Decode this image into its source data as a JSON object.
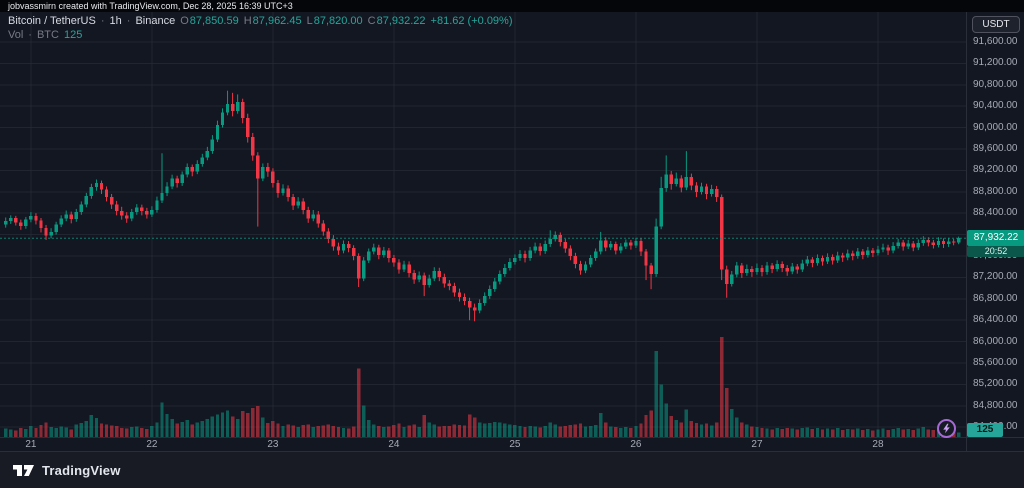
{
  "attribution": "jobvassmirn created with TradingView.com, Dec 28, 2025 16:39 UTC+3",
  "legend": {
    "symbol": "Bitcoin / TetherUS",
    "separator": "·",
    "interval": "1h",
    "exchange": "Binance",
    "ohlc": {
      "o_label": "O",
      "o": "87,850.59",
      "h_label": "H",
      "h": "87,962.45",
      "l_label": "L",
      "l": "87,820.00",
      "c_label": "C",
      "c": "87,932.22",
      "change": "+81.62 (+0.09%)"
    },
    "volume": {
      "label": "Vol",
      "unit": "BTC",
      "value": "125"
    }
  },
  "currency_button": {
    "label": "USDT"
  },
  "price_axis_ui": {
    "current_price": "87,932.22",
    "countdown": "20:52",
    "volume": "125"
  },
  "footer": {
    "brand": "TradingView"
  },
  "colors": {
    "up": "#089981",
    "down": "#f23645",
    "vol_up": "rgba(8,153,129,0.55)",
    "vol_down": "rgba(242,54,69,0.55)",
    "grid": "rgba(42,46,57,0.6)",
    "accent": "#26a69a",
    "badge_price_bg": "#089981",
    "badge_countdown_bg": "#0b574c",
    "badge_volume_bg": "#26a69a"
  },
  "chart_data": {
    "type": "candlestick+volume",
    "symbol": "Bitcoin / TetherUS",
    "interval": "1h",
    "exchange": "Binance",
    "last_price": 87932.22,
    "price_axis": {
      "top_value": 91600,
      "step": 400,
      "tick_labels": [
        "91,600.00",
        "91,200.00",
        "90,800.00",
        "90,400.00",
        "90,000.00",
        "89,600.00",
        "89,200.00",
        "88,800.00",
        "88,400.00",
        "88,000.00",
        "87,600.00",
        "87,200.00",
        "86,800.00",
        "86,400.00",
        "86,000.00",
        "85,600.00",
        "85,200.00",
        "84,800.00",
        "84,400.00"
      ]
    },
    "x_ticks": {
      "indices": [
        5,
        29,
        53,
        77,
        101,
        125,
        149,
        173
      ],
      "labels": [
        "21",
        "22",
        "23",
        "24",
        "25",
        "26",
        "27",
        "28"
      ]
    },
    "candles": [
      [
        88190,
        88320,
        88130,
        88250,
        240
      ],
      [
        88250,
        88360,
        88200,
        88310,
        210
      ],
      [
        88310,
        88350,
        88170,
        88230,
        180
      ],
      [
        88230,
        88280,
        88090,
        88160,
        260
      ],
      [
        88160,
        88330,
        88110,
        88280,
        230
      ],
      [
        88280,
        88420,
        88230,
        88350,
        310
      ],
      [
        88350,
        88400,
        88190,
        88260,
        250
      ],
      [
        88260,
        88310,
        88040,
        88120,
        340
      ],
      [
        88120,
        88180,
        87900,
        87980,
        420
      ],
      [
        87980,
        88120,
        87930,
        88050,
        280
      ],
      [
        88050,
        88240,
        88000,
        88190,
        260
      ],
      [
        88190,
        88360,
        88140,
        88300,
        300
      ],
      [
        88300,
        88450,
        88250,
        88380,
        270
      ],
      [
        88380,
        88430,
        88210,
        88290,
        220
      ],
      [
        88290,
        88480,
        88240,
        88420,
        350
      ],
      [
        88420,
        88620,
        88370,
        88560,
        400
      ],
      [
        88560,
        88780,
        88510,
        88720,
        450
      ],
      [
        88720,
        88950,
        88670,
        88890,
        620
      ],
      [
        88890,
        89030,
        88820,
        88960,
        540
      ],
      [
        88960,
        89010,
        88760,
        88840,
        380
      ],
      [
        88840,
        88900,
        88620,
        88700,
        360
      ],
      [
        88700,
        88760,
        88480,
        88560,
        330
      ],
      [
        88560,
        88630,
        88360,
        88440,
        310
      ],
      [
        88440,
        88520,
        88280,
        88360,
        260
      ],
      [
        88360,
        88420,
        88220,
        88300,
        240
      ],
      [
        88300,
        88480,
        88250,
        88420,
        280
      ],
      [
        88420,
        88570,
        88370,
        88510,
        300
      ],
      [
        88510,
        88560,
        88360,
        88440,
        250
      ],
      [
        88440,
        88500,
        88300,
        88380,
        230
      ],
      [
        88380,
        88530,
        88330,
        88460,
        320
      ],
      [
        88460,
        88710,
        88410,
        88640,
        420
      ],
      [
        88640,
        89520,
        88590,
        88780,
        980
      ],
      [
        88780,
        88980,
        88720,
        88900,
        650
      ],
      [
        88900,
        89120,
        88850,
        89050,
        520
      ],
      [
        89050,
        89100,
        88880,
        88960,
        380
      ],
      [
        88960,
        89180,
        88910,
        89120,
        430
      ],
      [
        89120,
        89330,
        89070,
        89260,
        480
      ],
      [
        89260,
        89310,
        89090,
        89180,
        350
      ],
      [
        89180,
        89390,
        89130,
        89320,
        420
      ],
      [
        89320,
        89510,
        89270,
        89440,
        460
      ],
      [
        89440,
        89640,
        89390,
        89560,
        510
      ],
      [
        89560,
        89860,
        89510,
        89780,
        580
      ],
      [
        89780,
        90130,
        89730,
        90050,
        640
      ],
      [
        90050,
        90360,
        90000,
        90280,
        700
      ],
      [
        90280,
        90690,
        90230,
        90440,
        760
      ],
      [
        90440,
        90650,
        90210,
        90310,
        580
      ],
      [
        90310,
        90620,
        90260,
        90480,
        520
      ],
      [
        90480,
        90540,
        90080,
        90180,
        740
      ],
      [
        90180,
        90260,
        89720,
        89820,
        690
      ],
      [
        89820,
        89900,
        89380,
        89480,
        820
      ],
      [
        89480,
        89540,
        88150,
        89050,
        880
      ],
      [
        89050,
        89330,
        89000,
        89260,
        560
      ],
      [
        89260,
        89340,
        89080,
        89180,
        400
      ],
      [
        89180,
        89240,
        88880,
        88960,
        450
      ],
      [
        88960,
        89020,
        88690,
        88780,
        380
      ],
      [
        88780,
        88940,
        88730,
        88860,
        320
      ],
      [
        88860,
        88920,
        88620,
        88700,
        350
      ],
      [
        88700,
        88760,
        88460,
        88540,
        330
      ],
      [
        88540,
        88700,
        88490,
        88620,
        290
      ],
      [
        88620,
        88680,
        88380,
        88460,
        340
      ],
      [
        88460,
        88520,
        88220,
        88300,
        360
      ],
      [
        88300,
        88460,
        88250,
        88380,
        280
      ],
      [
        88380,
        88440,
        88130,
        88210,
        310
      ],
      [
        88210,
        88270,
        87980,
        88060,
        330
      ],
      [
        88060,
        88120,
        87840,
        87920,
        350
      ],
      [
        87920,
        87990,
        87700,
        87780,
        320
      ],
      [
        87780,
        87850,
        87620,
        87700,
        280
      ],
      [
        87700,
        87890,
        87650,
        87820,
        260
      ],
      [
        87820,
        87880,
        87670,
        87750,
        240
      ],
      [
        87750,
        87800,
        87520,
        87600,
        300
      ],
      [
        87600,
        87650,
        87020,
        87180,
        1950
      ],
      [
        87180,
        87580,
        87130,
        87520,
        900
      ],
      [
        87520,
        87740,
        87470,
        87680,
        480
      ],
      [
        87680,
        87830,
        87630,
        87760,
        360
      ],
      [
        87760,
        87810,
        87540,
        87620,
        320
      ],
      [
        87620,
        87770,
        87570,
        87700,
        280
      ],
      [
        87700,
        87750,
        87480,
        87560,
        300
      ],
      [
        87560,
        87620,
        87400,
        87480,
        340
      ],
      [
        87480,
        87540,
        87270,
        87350,
        380
      ],
      [
        87350,
        87510,
        87300,
        87440,
        290
      ],
      [
        87440,
        87500,
        87200,
        87280,
        330
      ],
      [
        87280,
        87340,
        87080,
        87160,
        360
      ],
      [
        87160,
        87310,
        87110,
        87240,
        280
      ],
      [
        87240,
        87290,
        86850,
        87060,
        620
      ],
      [
        87060,
        87250,
        87010,
        87180,
        420
      ],
      [
        87180,
        87390,
        87130,
        87320,
        350
      ],
      [
        87320,
        87380,
        87130,
        87210,
        300
      ],
      [
        87210,
        87270,
        87010,
        87090,
        320
      ],
      [
        87090,
        87150,
        86960,
        87040,
        310
      ],
      [
        87040,
        87100,
        86840,
        86920,
        360
      ],
      [
        86920,
        86990,
        86750,
        86830,
        340
      ],
      [
        86830,
        86900,
        86680,
        86760,
        330
      ],
      [
        86760,
        86820,
        86400,
        86640,
        640
      ],
      [
        86640,
        86710,
        86380,
        86580,
        560
      ],
      [
        86580,
        86790,
        86530,
        86720,
        420
      ],
      [
        86720,
        86920,
        86670,
        86850,
        380
      ],
      [
        86850,
        87050,
        86800,
        86980,
        400
      ],
      [
        86980,
        87190,
        86930,
        87120,
        430
      ],
      [
        87120,
        87330,
        87070,
        87260,
        410
      ],
      [
        87260,
        87450,
        87210,
        87380,
        380
      ],
      [
        87380,
        87560,
        87330,
        87490,
        360
      ],
      [
        87490,
        87630,
        87440,
        87560,
        340
      ],
      [
        87560,
        87710,
        87510,
        87640,
        310
      ],
      [
        87640,
        87700,
        87480,
        87560,
        280
      ],
      [
        87560,
        87770,
        87510,
        87700,
        320
      ],
      [
        87700,
        87850,
        87650,
        87780,
        300
      ],
      [
        87780,
        87840,
        87610,
        87690,
        270
      ],
      [
        87690,
        87890,
        87640,
        87820,
        310
      ],
      [
        87820,
        88080,
        87770,
        87920,
        420
      ],
      [
        87920,
        88060,
        87870,
        87990,
        350
      ],
      [
        87990,
        88040,
        87780,
        87860,
        300
      ],
      [
        87860,
        87920,
        87660,
        87740,
        320
      ],
      [
        87740,
        87800,
        87520,
        87600,
        340
      ],
      [
        87600,
        87660,
        87370,
        87450,
        360
      ],
      [
        87450,
        87510,
        87250,
        87330,
        380
      ],
      [
        87330,
        87500,
        87280,
        87440,
        300
      ],
      [
        87440,
        87620,
        87390,
        87560,
        320
      ],
      [
        87560,
        87740,
        87510,
        87680,
        340
      ],
      [
        87680,
        88050,
        87630,
        87890,
        680
      ],
      [
        87890,
        87950,
        87690,
        87760,
        420
      ],
      [
        87760,
        87880,
        87710,
        87820,
        300
      ],
      [
        87820,
        87870,
        87630,
        87700,
        280
      ],
      [
        87700,
        87840,
        87650,
        87780,
        260
      ],
      [
        87780,
        87910,
        87730,
        87850,
        290
      ],
      [
        87850,
        87900,
        87720,
        87800,
        250
      ],
      [
        87800,
        87940,
        87750,
        87880,
        310
      ],
      [
        87880,
        87930,
        87600,
        87680,
        380
      ],
      [
        87680,
        87730,
        87150,
        87420,
        620
      ],
      [
        87420,
        87470,
        86980,
        87260,
        750
      ],
      [
        87260,
        88300,
        87210,
        88150,
        2450
      ],
      [
        88150,
        89080,
        88100,
        88870,
        1500
      ],
      [
        88870,
        89480,
        88800,
        89120,
        950
      ],
      [
        89120,
        89190,
        88840,
        88950,
        600
      ],
      [
        88950,
        89160,
        88900,
        89050,
        480
      ],
      [
        89050,
        89110,
        88790,
        88880,
        420
      ],
      [
        88880,
        89560,
        88830,
        89080,
        780
      ],
      [
        89080,
        89140,
        88830,
        88920,
        450
      ],
      [
        88920,
        88980,
        88700,
        88800,
        400
      ],
      [
        88800,
        88970,
        88750,
        88900,
        350
      ],
      [
        88900,
        88950,
        88660,
        88760,
        380
      ],
      [
        88760,
        88930,
        88710,
        88850,
        330
      ],
      [
        88850,
        88910,
        88610,
        88700,
        420
      ],
      [
        88700,
        88750,
        87150,
        87350,
        2850
      ],
      [
        87350,
        87420,
        86820,
        87080,
        1400
      ],
      [
        87080,
        87320,
        87030,
        87250,
        800
      ],
      [
        87250,
        87490,
        87200,
        87420,
        550
      ],
      [
        87420,
        87470,
        87190,
        87280,
        420
      ],
      [
        87280,
        87440,
        87230,
        87360,
        350
      ],
      [
        87360,
        87410,
        87210,
        87300,
        300
      ],
      [
        87300,
        87460,
        87250,
        87380,
        280
      ],
      [
        87380,
        87430,
        87220,
        87300,
        260
      ],
      [
        87300,
        87490,
        87250,
        87420,
        240
      ],
      [
        87420,
        87470,
        87280,
        87360,
        220
      ],
      [
        87360,
        87520,
        87310,
        87450,
        250
      ],
      [
        87450,
        87500,
        87300,
        87380,
        230
      ],
      [
        87380,
        87430,
        87230,
        87310,
        260
      ],
      [
        87310,
        87470,
        87260,
        87400,
        240
      ],
      [
        87400,
        87450,
        87270,
        87350,
        210
      ],
      [
        87350,
        87530,
        87300,
        87460,
        250
      ],
      [
        87460,
        87600,
        87410,
        87530,
        270
      ],
      [
        87530,
        87580,
        87390,
        87470,
        230
      ],
      [
        87470,
        87630,
        87420,
        87560,
        260
      ],
      [
        87560,
        87610,
        87420,
        87500,
        220
      ],
      [
        87500,
        87650,
        87450,
        87580,
        240
      ],
      [
        87580,
        87630,
        87440,
        87520,
        210
      ],
      [
        87520,
        87680,
        87470,
        87610,
        250
      ],
      [
        87610,
        87660,
        87490,
        87570,
        200
      ],
      [
        87570,
        87720,
        87520,
        87650,
        230
      ],
      [
        87650,
        87700,
        87520,
        87600,
        210
      ],
      [
        87600,
        87750,
        87550,
        87680,
        240
      ],
      [
        87680,
        87730,
        87540,
        87620,
        200
      ],
      [
        87620,
        87770,
        87570,
        87700,
        230
      ],
      [
        87700,
        87750,
        87580,
        87660,
        190
      ],
      [
        87660,
        87790,
        87610,
        87720,
        220
      ],
      [
        87720,
        87830,
        87670,
        87760,
        240
      ],
      [
        87760,
        87810,
        87620,
        87700,
        200
      ],
      [
        87700,
        87860,
        87650,
        87790,
        230
      ],
      [
        87790,
        87920,
        87740,
        87850,
        260
      ],
      [
        87850,
        87900,
        87700,
        87780,
        210
      ],
      [
        87780,
        87900,
        87730,
        87830,
        230
      ],
      [
        87830,
        87880,
        87690,
        87760,
        200
      ],
      [
        87760,
        87910,
        87710,
        87840,
        240
      ],
      [
        87840,
        87970,
        87790,
        87900,
        280
      ],
      [
        87900,
        87950,
        87780,
        87850,
        220
      ],
      [
        87850,
        87900,
        87740,
        87810,
        200
      ],
      [
        87810,
        87950,
        87760,
        87880,
        230
      ],
      [
        87880,
        87930,
        87750,
        87820,
        190
      ],
      [
        87820,
        87940,
        87770,
        87870,
        210
      ],
      [
        87870,
        87920,
        87800,
        87850.59,
        180
      ],
      [
        87850.59,
        87962.45,
        87820,
        87932.22,
        125
      ]
    ]
  }
}
